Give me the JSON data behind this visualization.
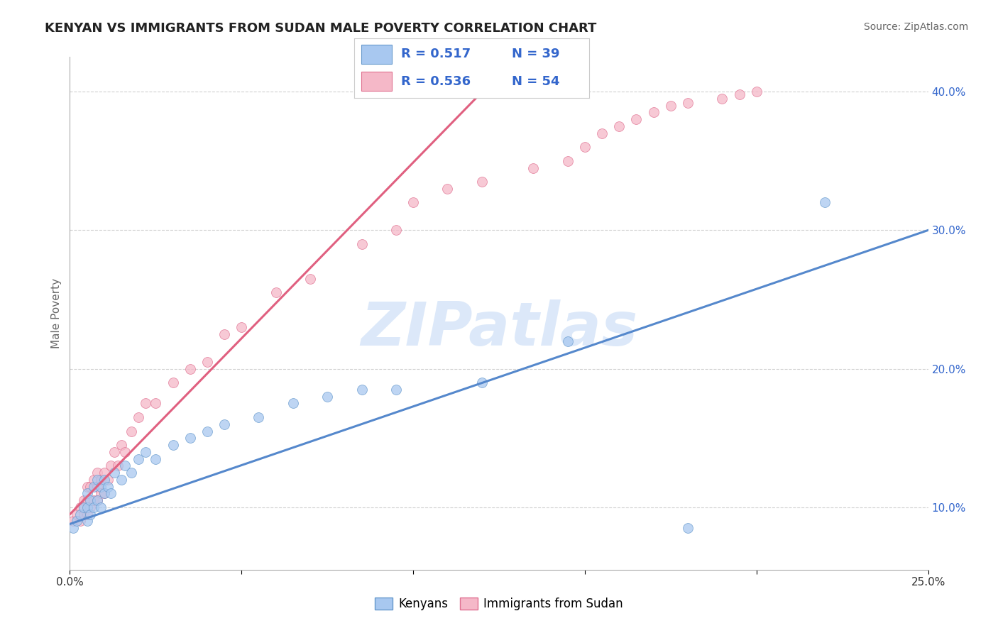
{
  "title": "KENYAN VS IMMIGRANTS FROM SUDAN MALE POVERTY CORRELATION CHART",
  "source": "Source: ZipAtlas.com",
  "ylabel": "Male Poverty",
  "watermark": "ZIPatlas",
  "x_min": 0.0,
  "x_max": 0.25,
  "y_min": 0.055,
  "y_max": 0.425,
  "y_ticks": [
    0.1,
    0.2,
    0.3,
    0.4
  ],
  "x_ticks": [
    0.0,
    0.05,
    0.1,
    0.15,
    0.2,
    0.25
  ],
  "legend_r1": "R = 0.517",
  "legend_n1": "N = 39",
  "legend_r2": "R = 0.536",
  "legend_n2": "N = 54",
  "color_kenyan_fill": "#a8c8f0",
  "color_kenyan_edge": "#6699cc",
  "color_sudan_fill": "#f5b8c8",
  "color_sudan_edge": "#e07090",
  "color_line_kenyan": "#5588cc",
  "color_line_sudan": "#e06080",
  "color_legend_text": "#3366cc",
  "color_legend_n": "#3366cc",
  "color_title": "#222222",
  "color_source": "#666666",
  "color_ylabel": "#666666",
  "color_ytick": "#3366cc",
  "color_xtick": "#333333",
  "color_grid": "#cccccc",
  "bg_color": "#ffffff",
  "kenyan_x": [
    0.001,
    0.002,
    0.003,
    0.004,
    0.005,
    0.005,
    0.005,
    0.006,
    0.006,
    0.007,
    0.007,
    0.008,
    0.008,
    0.009,
    0.009,
    0.01,
    0.01,
    0.011,
    0.012,
    0.013,
    0.015,
    0.016,
    0.018,
    0.02,
    0.022,
    0.025,
    0.03,
    0.035,
    0.04,
    0.045,
    0.055,
    0.065,
    0.075,
    0.085,
    0.095,
    0.12,
    0.145,
    0.18,
    0.22
  ],
  "kenyan_y": [
    0.085,
    0.09,
    0.095,
    0.1,
    0.09,
    0.1,
    0.11,
    0.095,
    0.105,
    0.1,
    0.115,
    0.105,
    0.12,
    0.1,
    0.115,
    0.11,
    0.12,
    0.115,
    0.11,
    0.125,
    0.12,
    0.13,
    0.125,
    0.135,
    0.14,
    0.135,
    0.145,
    0.15,
    0.155,
    0.16,
    0.165,
    0.175,
    0.18,
    0.185,
    0.185,
    0.19,
    0.22,
    0.085,
    0.32
  ],
  "sudan_x": [
    0.001,
    0.002,
    0.003,
    0.003,
    0.004,
    0.004,
    0.005,
    0.005,
    0.005,
    0.006,
    0.006,
    0.007,
    0.007,
    0.008,
    0.008,
    0.008,
    0.009,
    0.009,
    0.01,
    0.01,
    0.011,
    0.012,
    0.013,
    0.014,
    0.015,
    0.016,
    0.018,
    0.02,
    0.022,
    0.025,
    0.03,
    0.035,
    0.04,
    0.045,
    0.05,
    0.06,
    0.07,
    0.085,
    0.095,
    0.1,
    0.11,
    0.12,
    0.135,
    0.145,
    0.15,
    0.155,
    0.16,
    0.165,
    0.17,
    0.175,
    0.18,
    0.19,
    0.195,
    0.2
  ],
  "sudan_y": [
    0.09,
    0.095,
    0.09,
    0.1,
    0.095,
    0.105,
    0.095,
    0.105,
    0.115,
    0.1,
    0.115,
    0.105,
    0.12,
    0.105,
    0.115,
    0.125,
    0.11,
    0.12,
    0.11,
    0.125,
    0.12,
    0.13,
    0.14,
    0.13,
    0.145,
    0.14,
    0.155,
    0.165,
    0.175,
    0.175,
    0.19,
    0.2,
    0.205,
    0.225,
    0.23,
    0.255,
    0.265,
    0.29,
    0.3,
    0.32,
    0.33,
    0.335,
    0.345,
    0.35,
    0.36,
    0.37,
    0.375,
    0.38,
    0.385,
    0.39,
    0.392,
    0.395,
    0.398,
    0.4
  ],
  "kenyan_line": [
    0.0,
    0.25,
    0.088,
    0.3
  ],
  "sudan_line": [
    0.0,
    0.13,
    0.095,
    0.425
  ],
  "watermark_color": "#c5daf5",
  "watermark_alpha": 0.6
}
